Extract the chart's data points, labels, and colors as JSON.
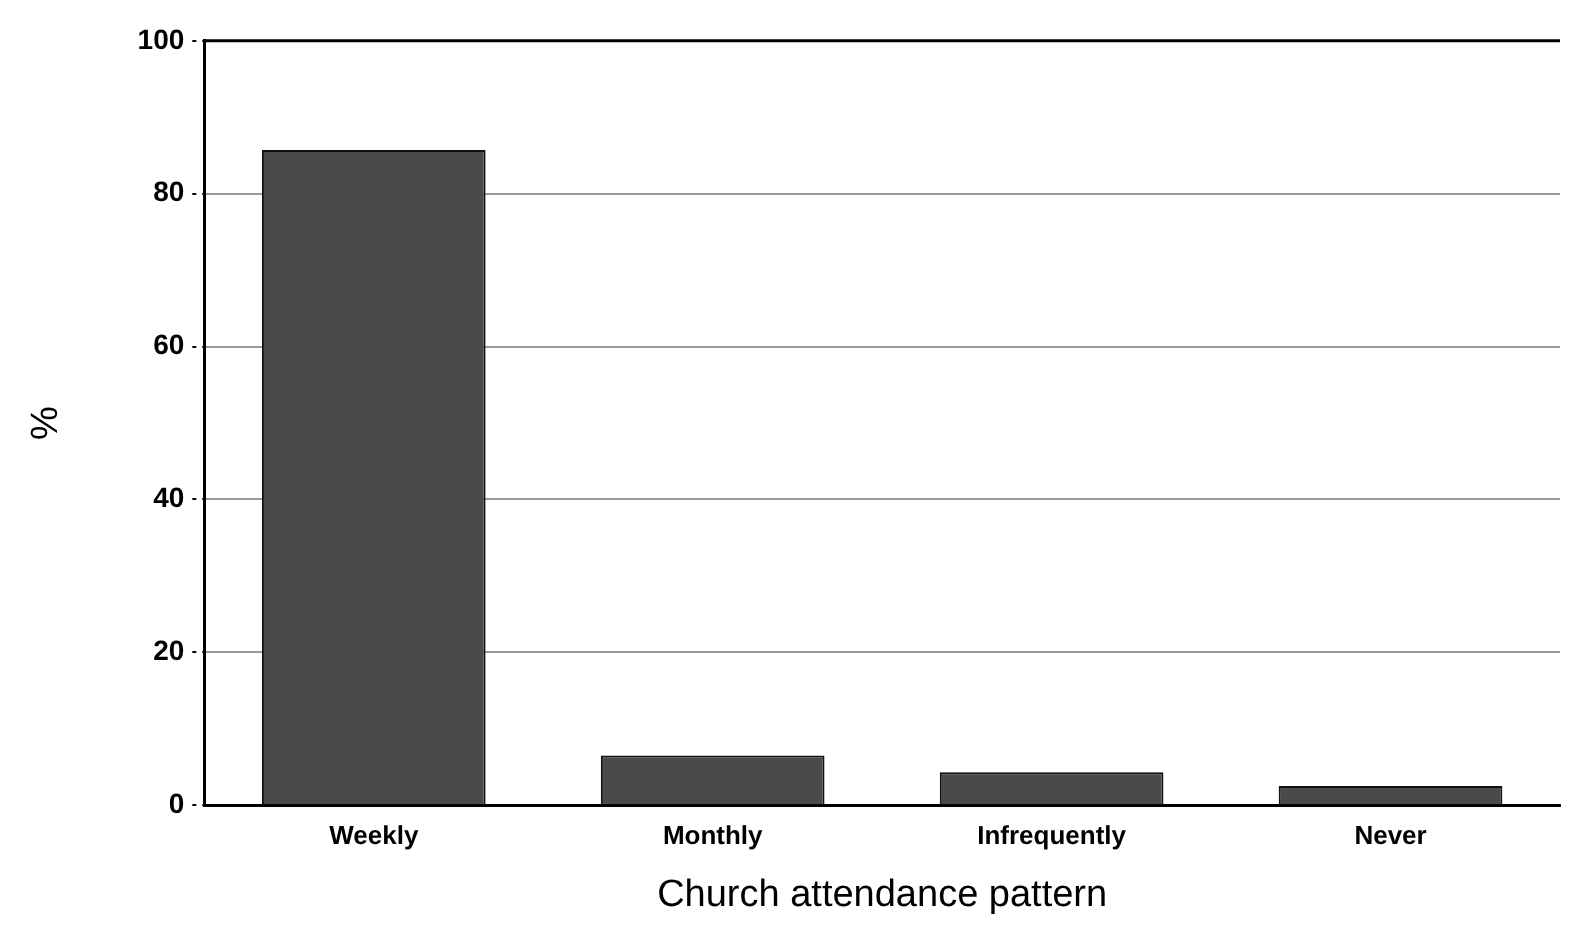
{
  "chart_data": {
    "type": "bar",
    "categories": [
      "Weekly",
      "Monthly",
      "Infrequently",
      "Never"
    ],
    "values": [
      85.7,
      6.5,
      4.3,
      2.5
    ],
    "color": "#4a4a4a",
    "xlabel": "Church attendance pattern",
    "ylabel": "%",
    "ylim": [
      0,
      100
    ],
    "yticks": [
      0,
      20,
      40,
      60,
      80,
      100
    ],
    "grid": "y",
    "legend": false
  }
}
